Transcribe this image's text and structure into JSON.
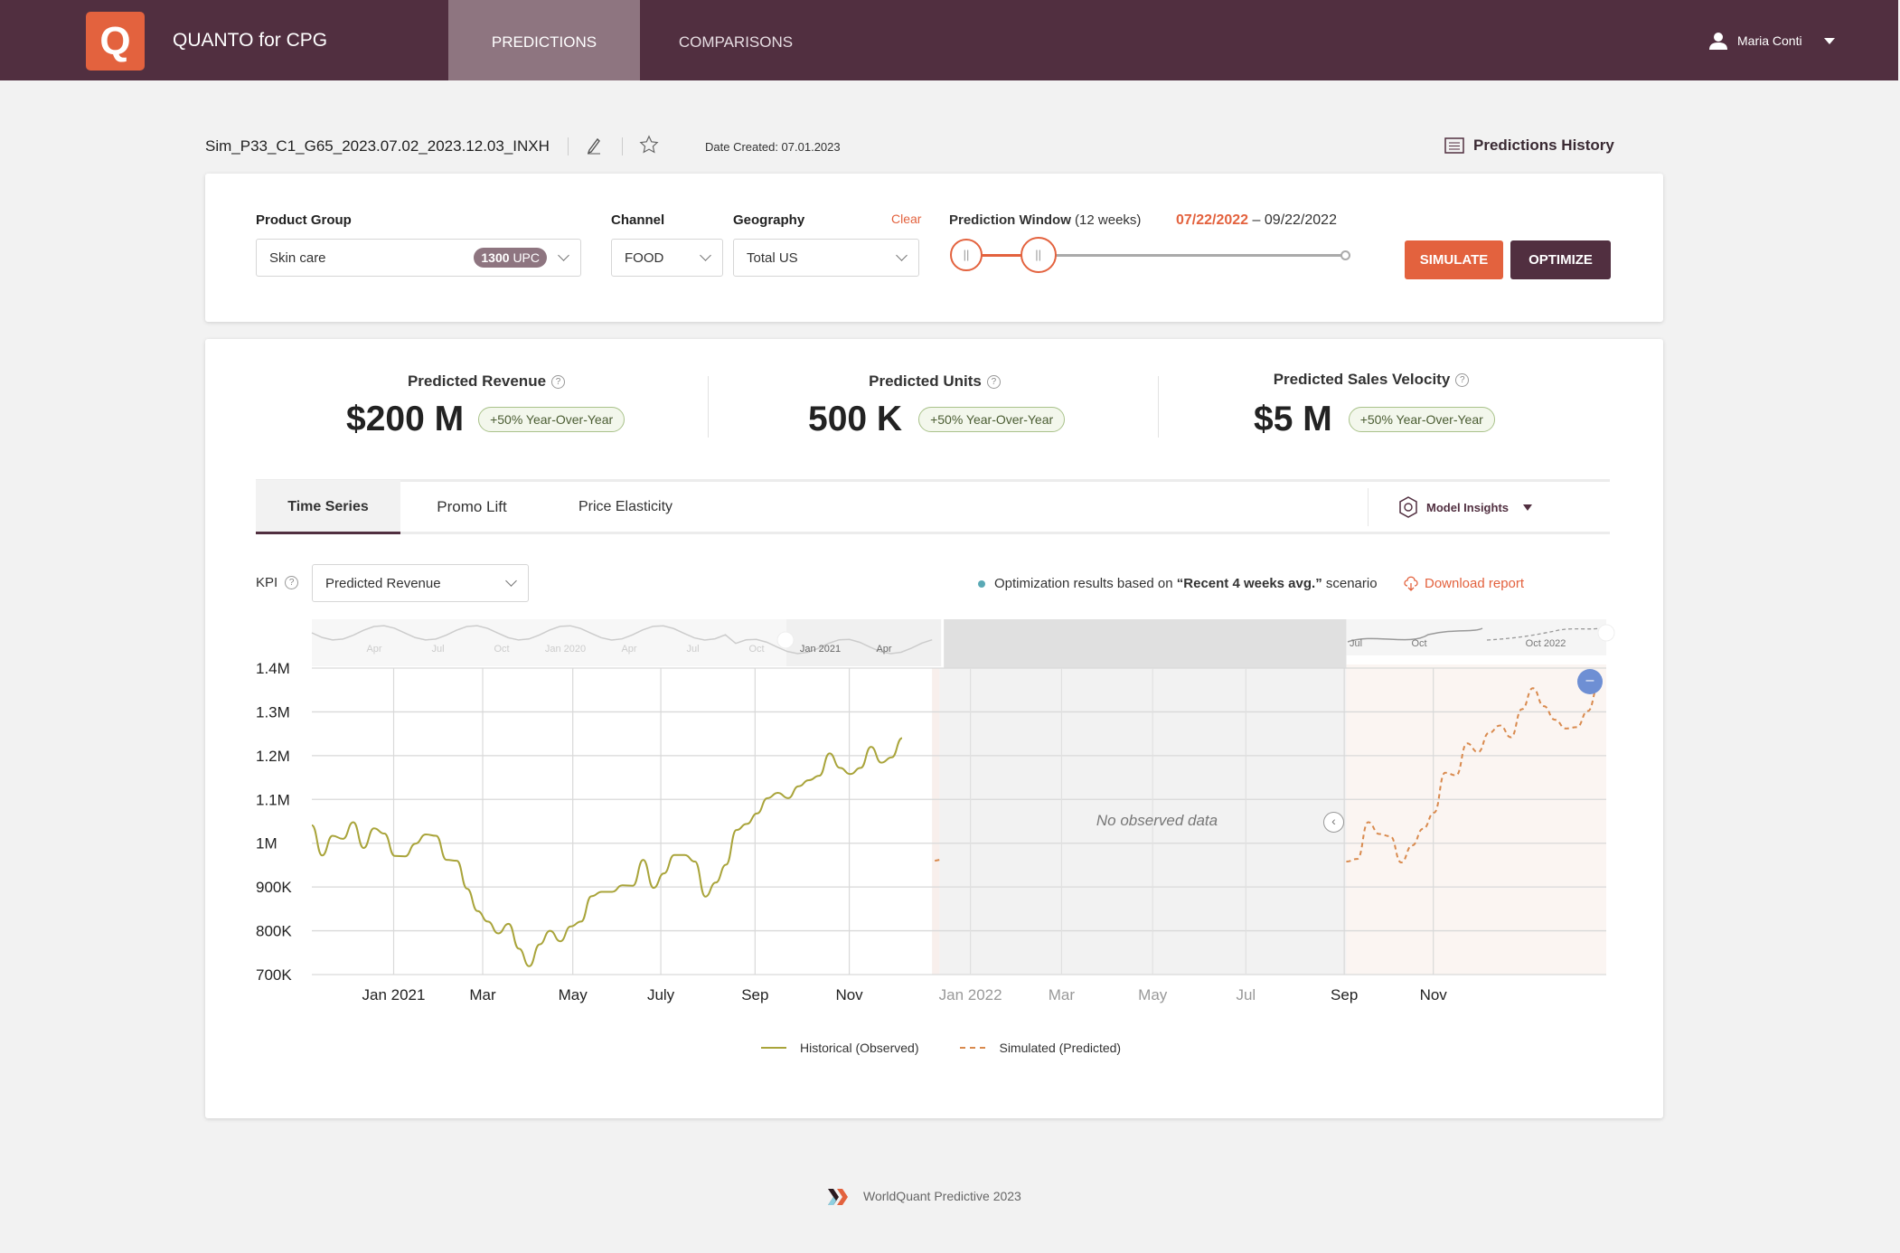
{
  "header": {
    "app_title": "QUANTO for CPG",
    "logo_letter": "Q",
    "nav": [
      "PREDICTIONS",
      "COMPARISONS"
    ],
    "user_name": "Maria Conti"
  },
  "sim": {
    "name": "Sim_P33_C1_G65_2023.07.02_2023.12.03_INXH",
    "date_created": "Date Created: 07.01.2023",
    "history_label": "Predictions History"
  },
  "filters": {
    "product_group_label": "Product Group",
    "product_group_value": "Skin care",
    "upc_count": "1300",
    "upc_unit": "UPC",
    "channel_label": "Channel",
    "channel_value": "FOOD",
    "geography_label": "Geography",
    "geography_value": "Total US",
    "clear_label": "Clear",
    "window_label": "Prediction Window",
    "window_weeks": "(12 weeks)",
    "window_start": "07/22/2022",
    "window_sep": "–",
    "window_end": "09/22/2022",
    "simulate": "SIMULATE",
    "optimize": "OPTIMIZE",
    "slider_start_fraction": 0.0,
    "slider_end_fraction": 0.19
  },
  "kpis": [
    {
      "label": "Predicted Revenue",
      "value": "$200 M",
      "badge": "+50% Year-Over-Year"
    },
    {
      "label": "Predicted Units",
      "value": "500 K",
      "badge": "+50% Year-Over-Year"
    },
    {
      "label": "Predicted Sales Velocity",
      "value": "$5 M",
      "badge": "+50% Year-Over-Year"
    }
  ],
  "tabs": [
    "Time Series",
    "Promo Lift",
    "Price Elasticity"
  ],
  "model_insights": "Model Insights",
  "kpi_select": {
    "label": "KPI",
    "value": "Predicted Revenue"
  },
  "note": {
    "prefix": "Optimization results based on ",
    "scenario": "“Recent 4 weeks avg.”",
    "suffix": " scenario"
  },
  "download": "Download report",
  "footer": "WorldQuant Predictive 2023",
  "chart_data": {
    "type": "line",
    "ylabel": "",
    "xlabel": "",
    "ylim": [
      700,
      1400
    ],
    "y_ticks": [
      {
        "v": 1400,
        "label": "1.4M"
      },
      {
        "v": 1300,
        "label": "1.3M"
      },
      {
        "v": 1200,
        "label": "1.2M"
      },
      {
        "v": 1100,
        "label": "1.1M"
      },
      {
        "v": 1000,
        "label": "1M"
      },
      {
        "v": 900,
        "label": "900K"
      },
      {
        "v": 800,
        "label": "800K"
      },
      {
        "v": 700,
        "label": "700K"
      }
    ],
    "x_unit": "weeks",
    "xlim": [
      0,
      125
    ],
    "x_ticks": [
      {
        "w": 7.9,
        "label": "Jan 2021",
        "dim": false
      },
      {
        "w": 16.5,
        "label": "Mar",
        "dim": false
      },
      {
        "w": 25.2,
        "label": "May",
        "dim": false
      },
      {
        "w": 33.7,
        "label": "July",
        "dim": false
      },
      {
        "w": 42.8,
        "label": "Sep",
        "dim": false
      },
      {
        "w": 51.9,
        "label": "Nov",
        "dim": false
      },
      {
        "w": 63.6,
        "label": "Jan 2022",
        "dim": true
      },
      {
        "w": 72.4,
        "label": "Mar",
        "dim": true
      },
      {
        "w": 81.2,
        "label": "May",
        "dim": true
      },
      {
        "w": 90.2,
        "label": "Jul",
        "dim": true
      },
      {
        "w": 99.7,
        "label": "Sep",
        "dim": false
      },
      {
        "w": 108.3,
        "label": "Nov",
        "dim": false
      }
    ],
    "no_data_range": [
      59.9,
      99.9
    ],
    "no_data_label": "No observed data",
    "series": [
      {
        "name": "Historical (Observed)",
        "color": "#a9a43a",
        "dashed": false,
        "x_start": 0,
        "x_step": 1,
        "values": [
          1041,
          972,
          1017,
          1010,
          1048,
          989,
          1034,
          1022,
          971,
          970,
          999,
          1020,
          1017,
          962,
          960,
          896,
          845,
          821,
          794,
          816,
          759,
          719,
          769,
          800,
          776,
          810,
          821,
          879,
          889,
          889,
          904,
          903,
          962,
          898,
          931,
          973,
          973,
          958,
          878,
          910,
          951,
          1030,
          1044,
          1068,
          1103,
          1115,
          1103,
          1130,
          1144,
          1154,
          1205,
          1172,
          1158,
          1172,
          1220,
          1184,
          1196,
          1240
        ]
      },
      {
        "name": "Simulated (Predicted)",
        "color": "#d98a4e",
        "dashed": true,
        "x_start": 99.9,
        "x_step": 1.06,
        "values": [
          958,
          964,
          1048,
          1021,
          1016,
          956,
          995,
          1033,
          1070,
          1161,
          1155,
          1228,
          1208,
          1252,
          1269,
          1242,
          1306,
          1354,
          1313,
          1282,
          1262,
          1265,
          1302,
          1361
        ]
      }
    ],
    "navigator_labels_left": [
      "Apr",
      "Jul",
      "Oct",
      "Jan 2020",
      "Apr",
      "Jul",
      "Oct",
      "Jan 2021",
      "Apr"
    ],
    "navigator_labels_right": [
      "Jul",
      "Oct",
      "Oct 2022"
    ],
    "legend": "bottom-center"
  }
}
